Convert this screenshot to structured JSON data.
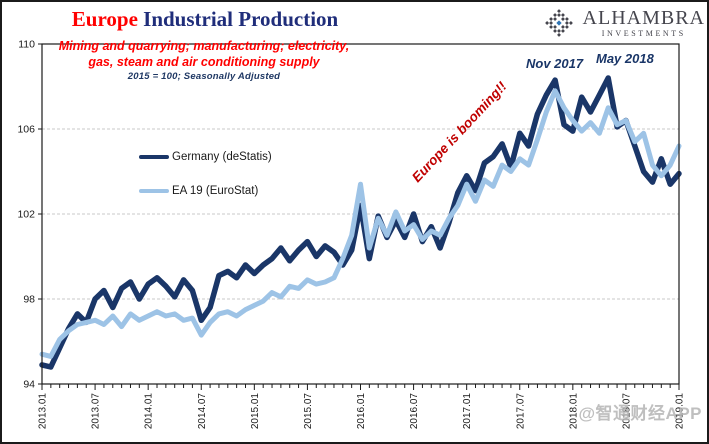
{
  "header": {
    "title_emphasis": "Europe",
    "title_rest": " Industrial Production"
  },
  "logo": {
    "name": "ALHAMBRA",
    "tagline": "INVESTMENTS"
  },
  "watermark": "@智通财经APP",
  "colors": {
    "title_accent_red": "#ff0000",
    "title_navy": "#1f2d7a",
    "subtitle_red": "#ff0000",
    "subtitle_navy": "#1f3864",
    "booming_red": "#c00000",
    "annotation_navy": "#1a3668",
    "germany_line": "#1a3668",
    "ea19_line": "#9dc3e6",
    "gridline_gray": "#c9c9c9",
    "watermark_gray": "#b5b5b5",
    "logo_gray": "#45454d",
    "logo_blue": "#2e74b5"
  },
  "chart_data": {
    "type": "line",
    "title": "Europe Industrial Production",
    "subtitle": [
      "Mining and quarrying;  manufacturing;  electricity,",
      "gas, steam and air conditioning  supply",
      "2015 = 100; Seasonally Adjusted"
    ],
    "x_unit": "month",
    "x_range": [
      "2013.01",
      "2019.01"
    ],
    "x_tick_interval_months": 6,
    "x_tick_labels": [
      "2013.01",
      "2013.07",
      "2014.01",
      "2014.07",
      "2015.01",
      "2015.07",
      "2016.01",
      "2016.07",
      "2017.01",
      "2017.07",
      "2018.01",
      "2018.07",
      "2019.01"
    ],
    "ylim": [
      94,
      110
    ],
    "y_ticks": [
      94,
      98,
      102,
      106,
      110
    ],
    "gridlines": {
      "values": [
        98,
        102,
        106
      ],
      "style": "dashed",
      "color": "#c9c9c9"
    },
    "legend_position": "upper-left-inside",
    "annotations": {
      "nov": "Nov 2017",
      "may": "May 2018",
      "booming": "Europe is booming!!"
    },
    "series": [
      {
        "name": "Germany (deStatis)",
        "color": "#1a3668",
        "stroke_width": 5.5,
        "values": [
          94.9,
          94.8,
          95.7,
          96.6,
          97.3,
          96.9,
          98.0,
          98.4,
          97.6,
          98.5,
          98.8,
          98.0,
          98.7,
          99.0,
          98.6,
          98.1,
          98.9,
          98.4,
          97.0,
          97.6,
          99.1,
          99.3,
          99.0,
          99.6,
          99.2,
          99.6,
          99.9,
          100.4,
          99.8,
          100.3,
          100.7,
          100.0,
          100.5,
          100.2,
          99.6,
          100.3,
          102.4,
          99.9,
          101.9,
          100.9,
          101.7,
          100.9,
          102.0,
          100.7,
          101.4,
          100.4,
          101.6,
          103.0,
          103.8,
          103.1,
          104.4,
          104.7,
          105.3,
          104.2,
          105.8,
          105.2,
          106.7,
          107.6,
          108.3,
          106.2,
          105.9,
          107.5,
          106.8,
          107.6,
          108.4,
          106.1,
          106.4,
          105.2,
          104.0,
          103.5,
          104.6,
          103.4,
          103.9
        ]
      },
      {
        "name": "EA 19 (EuroStat)",
        "color": "#9dc3e6",
        "stroke_width": 5,
        "values": [
          95.4,
          95.3,
          96.1,
          96.5,
          96.8,
          96.9,
          97.0,
          96.8,
          97.2,
          96.7,
          97.3,
          97.0,
          97.2,
          97.4,
          97.2,
          97.3,
          97.0,
          97.1,
          96.3,
          96.9,
          97.3,
          97.4,
          97.2,
          97.5,
          97.7,
          97.9,
          98.3,
          98.1,
          98.6,
          98.5,
          98.9,
          98.7,
          98.8,
          99.0,
          99.9,
          101.0,
          103.4,
          100.4,
          101.8,
          101.0,
          102.1,
          101.2,
          101.5,
          100.8,
          101.2,
          101.0,
          101.8,
          102.4,
          103.4,
          102.6,
          103.6,
          103.3,
          104.3,
          104.0,
          104.6,
          104.3,
          105.5,
          106.8,
          107.8,
          107.0,
          106.4,
          105.9,
          106.3,
          105.8,
          107.0,
          106.2,
          106.4,
          105.4,
          105.8,
          104.3,
          103.8,
          104.3,
          105.2
        ]
      }
    ]
  }
}
